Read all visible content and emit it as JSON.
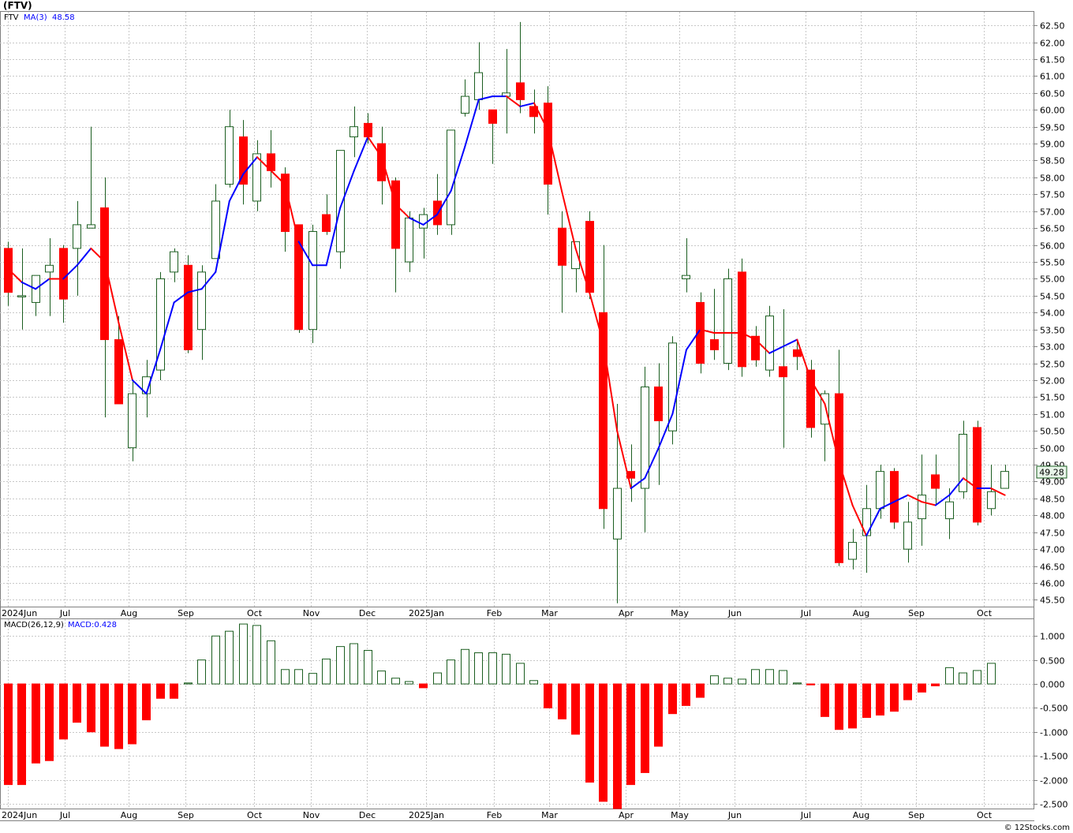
{
  "title": "(FTV)",
  "footer": "© 12Stocks.com",
  "colors": {
    "up": "#1b5e20",
    "down": "#ff0000",
    "ma_up": "#0000ff",
    "ma_down": "#ff0000",
    "grid": "#c8c8c8",
    "price_tag_bg": "#e8f5e9"
  },
  "price_panel": {
    "legend_symbol": "FTV",
    "legend_ma": "MA(3)",
    "legend_ma_value": "48.58",
    "last_price": "49.28"
  },
  "macd_panel": {
    "legend_macd": "MACD(26,12,9)",
    "legend_macd_value": "MACD:0.428"
  },
  "x_axis_labels": [
    {
      "label": "2024Jun",
      "i": 0
    },
    {
      "label": "Jul",
      "i": 4.1
    },
    {
      "label": "Aug",
      "i": 8.7
    },
    {
      "label": "Sep",
      "i": 12.8
    },
    {
      "label": "Oct",
      "i": 17.8
    },
    {
      "label": "Nov",
      "i": 21.9
    },
    {
      "label": "Dec",
      "i": 25.9
    },
    {
      "label": "2025Jan",
      "i": 30.2
    },
    {
      "label": "Feb",
      "i": 35.1
    },
    {
      "label": "Mar",
      "i": 39.1
    },
    {
      "label": "Apr",
      "i": 44.6
    },
    {
      "label": "May",
      "i": 48.5
    },
    {
      "label": "Jun",
      "i": 52.5
    },
    {
      "label": "Jul",
      "i": 57.6
    },
    {
      "label": "Aug",
      "i": 61.6
    },
    {
      "label": "Sep",
      "i": 65.6
    },
    {
      "label": "Oct",
      "i": 70.5
    }
  ],
  "chart_data": [
    {
      "type": "candlestick",
      "title": "",
      "ylim": [
        45.3,
        62.9
      ],
      "y_ticks": [
        "45.50",
        "46.00",
        "46.50",
        "47.00",
        "47.50",
        "48.00",
        "48.50",
        "49.00",
        "49.50",
        "50.00",
        "50.50",
        "51.00",
        "51.50",
        "52.00",
        "52.50",
        "53.00",
        "53.50",
        "54.00",
        "54.50",
        "55.00",
        "55.50",
        "56.00",
        "56.50",
        "57.00",
        "57.50",
        "58.00",
        "58.50",
        "59.00",
        "59.50",
        "60.00",
        "60.50",
        "61.00",
        "61.50",
        "62.00",
        "62.50"
      ],
      "candles": [
        {
          "o": 55.9,
          "h": 56.1,
          "l": 54.2,
          "c": 54.6
        },
        {
          "o": 54.5,
          "h": 55.9,
          "l": 53.5,
          "c": 54.5
        },
        {
          "o": 54.3,
          "h": 55.1,
          "l": 53.9,
          "c": 55.1
        },
        {
          "o": 55.2,
          "h": 56.2,
          "l": 53.9,
          "c": 55.4
        },
        {
          "o": 55.9,
          "h": 56.0,
          "l": 53.7,
          "c": 54.4
        },
        {
          "o": 55.9,
          "h": 57.3,
          "l": 54.5,
          "c": 56.6
        },
        {
          "o": 56.5,
          "h": 59.5,
          "l": 56.5,
          "c": 56.6
        },
        {
          "o": 57.1,
          "h": 58.0,
          "l": 50.9,
          "c": 53.2
        },
        {
          "o": 53.2,
          "h": 53.9,
          "l": 51.3,
          "c": 51.3
        },
        {
          "o": 50.0,
          "h": 52.0,
          "l": 49.6,
          "c": 51.6
        },
        {
          "o": 51.6,
          "h": 52.6,
          "l": 50.9,
          "c": 52.1
        },
        {
          "o": 52.3,
          "h": 55.2,
          "l": 52.0,
          "c": 55.0
        },
        {
          "o": 55.2,
          "h": 55.9,
          "l": 54.9,
          "c": 55.8
        },
        {
          "o": 55.4,
          "h": 55.7,
          "l": 52.8,
          "c": 52.9
        },
        {
          "o": 53.5,
          "h": 55.4,
          "l": 52.6,
          "c": 55.2
        },
        {
          "o": 55.6,
          "h": 57.8,
          "l": 55.6,
          "c": 57.3
        },
        {
          "o": 57.8,
          "h": 60.0,
          "l": 57.7,
          "c": 59.5
        },
        {
          "o": 59.2,
          "h": 59.7,
          "l": 57.2,
          "c": 57.8
        },
        {
          "o": 57.3,
          "h": 59.1,
          "l": 57.0,
          "c": 58.7
        },
        {
          "o": 58.7,
          "h": 59.4,
          "l": 57.7,
          "c": 58.2
        },
        {
          "o": 58.1,
          "h": 58.3,
          "l": 55.8,
          "c": 56.4
        },
        {
          "o": 56.6,
          "h": 56.6,
          "l": 53.4,
          "c": 53.5
        },
        {
          "o": 53.5,
          "h": 56.6,
          "l": 53.1,
          "c": 56.4
        },
        {
          "o": 56.9,
          "h": 57.5,
          "l": 56.3,
          "c": 56.4
        },
        {
          "o": 55.8,
          "h": 58.8,
          "l": 55.3,
          "c": 58.8
        },
        {
          "o": 59.2,
          "h": 60.1,
          "l": 58.6,
          "c": 59.5
        },
        {
          "o": 59.6,
          "h": 59.9,
          "l": 59.0,
          "c": 59.2
        },
        {
          "o": 59.0,
          "h": 59.5,
          "l": 57.2,
          "c": 57.9
        },
        {
          "o": 57.9,
          "h": 58.0,
          "l": 54.6,
          "c": 55.9
        },
        {
          "o": 55.5,
          "h": 57.0,
          "l": 55.2,
          "c": 56.8
        },
        {
          "o": 56.5,
          "h": 57.1,
          "l": 55.6,
          "c": 56.9
        },
        {
          "o": 57.3,
          "h": 58.1,
          "l": 56.3,
          "c": 56.6
        },
        {
          "o": 56.6,
          "h": 59.4,
          "l": 56.3,
          "c": 59.4
        },
        {
          "o": 59.9,
          "h": 60.9,
          "l": 59.8,
          "c": 60.4
        },
        {
          "o": 60.3,
          "h": 62.0,
          "l": 60.0,
          "c": 61.1
        },
        {
          "o": 60.0,
          "h": 60.0,
          "l": 58.4,
          "c": 59.6
        },
        {
          "o": 60.4,
          "h": 61.8,
          "l": 59.3,
          "c": 60.5
        },
        {
          "o": 60.8,
          "h": 62.6,
          "l": 59.9,
          "c": 60.3
        },
        {
          "o": 60.1,
          "h": 60.6,
          "l": 59.3,
          "c": 59.8
        },
        {
          "o": 60.2,
          "h": 60.7,
          "l": 56.9,
          "c": 57.8
        },
        {
          "o": 56.5,
          "h": 57.0,
          "l": 54.0,
          "c": 55.4
        },
        {
          "o": 55.3,
          "h": 56.1,
          "l": 54.6,
          "c": 56.1
        },
        {
          "o": 56.7,
          "h": 57.0,
          "l": 54.4,
          "c": 54.6
        },
        {
          "o": 54.0,
          "h": 56.0,
          "l": 47.6,
          "c": 48.2
        },
        {
          "o": 47.3,
          "h": 51.3,
          "l": 45.4,
          "c": 48.8
        },
        {
          "o": 49.3,
          "h": 50.1,
          "l": 48.4,
          "c": 49.1
        },
        {
          "o": 48.8,
          "h": 52.4,
          "l": 47.5,
          "c": 51.8
        },
        {
          "o": 51.8,
          "h": 52.5,
          "l": 48.9,
          "c": 50.8
        },
        {
          "o": 50.5,
          "h": 53.3,
          "l": 50.1,
          "c": 53.1
        },
        {
          "o": 55.0,
          "h": 56.2,
          "l": 54.6,
          "c": 55.1
        },
        {
          "o": 54.3,
          "h": 54.6,
          "l": 52.2,
          "c": 52.5
        },
        {
          "o": 53.2,
          "h": 54.7,
          "l": 52.6,
          "c": 52.9
        },
        {
          "o": 52.5,
          "h": 55.3,
          "l": 52.3,
          "c": 55.0
        },
        {
          "o": 55.2,
          "h": 55.6,
          "l": 52.1,
          "c": 52.4
        },
        {
          "o": 53.3,
          "h": 53.6,
          "l": 52.4,
          "c": 52.6
        },
        {
          "o": 52.3,
          "h": 54.2,
          "l": 52.1,
          "c": 53.9
        },
        {
          "o": 52.4,
          "h": 54.1,
          "l": 50.0,
          "c": 52.1
        },
        {
          "o": 52.9,
          "h": 53.2,
          "l": 52.3,
          "c": 52.7
        },
        {
          "o": 52.3,
          "h": 52.6,
          "l": 50.3,
          "c": 50.6
        },
        {
          "o": 50.7,
          "h": 51.7,
          "l": 49.6,
          "c": 51.6
        },
        {
          "o": 51.6,
          "h": 52.9,
          "l": 46.5,
          "c": 46.6
        },
        {
          "o": 46.7,
          "h": 47.6,
          "l": 46.4,
          "c": 47.2
        },
        {
          "o": 47.4,
          "h": 48.9,
          "l": 46.3,
          "c": 48.2
        },
        {
          "o": 48.2,
          "h": 49.5,
          "l": 47.9,
          "c": 49.3
        },
        {
          "o": 49.3,
          "h": 49.4,
          "l": 47.6,
          "c": 47.8
        },
        {
          "o": 47.0,
          "h": 48.4,
          "l": 46.6,
          "c": 47.8
        },
        {
          "o": 47.9,
          "h": 49.8,
          "l": 47.1,
          "c": 48.6
        },
        {
          "o": 49.2,
          "h": 49.8,
          "l": 48.3,
          "c": 48.8
        },
        {
          "o": 47.9,
          "h": 48.8,
          "l": 47.3,
          "c": 48.4
        },
        {
          "o": 48.7,
          "h": 50.8,
          "l": 48.5,
          "c": 50.4
        },
        {
          "o": 50.6,
          "h": 50.8,
          "l": 47.7,
          "c": 47.8
        },
        {
          "o": 48.2,
          "h": 49.5,
          "l": 48.0,
          "c": 48.7
        },
        {
          "o": 48.8,
          "h": 49.5,
          "l": 48.8,
          "c": 49.3
        }
      ],
      "ma": [
        55.3,
        54.9,
        54.7,
        55.0,
        55.0,
        55.4,
        55.9,
        55.5,
        53.7,
        52.0,
        51.6,
        52.9,
        54.3,
        54.6,
        54.7,
        55.2,
        57.3,
        58.1,
        58.6,
        58.2,
        57.8,
        56.1,
        55.4,
        55.4,
        57.1,
        58.2,
        59.2,
        58.6,
        57.2,
        56.8,
        56.6,
        56.9,
        57.6,
        58.9,
        60.3,
        60.4,
        60.4,
        60.1,
        60.2,
        59.4,
        57.6,
        55.9,
        54.6,
        53.1,
        50.5,
        48.8,
        49.1,
        50.0,
        51.0,
        52.9,
        53.5,
        53.4,
        53.4,
        53.4,
        53.2,
        52.8,
        53.0,
        53.2,
        52.0,
        51.3,
        49.6,
        48.3,
        47.4,
        48.2,
        48.4,
        48.6,
        48.4,
        48.3,
        48.6,
        49.1,
        48.8,
        48.8,
        48.6
      ],
      "ma_rising": [
        false,
        false,
        true,
        true,
        false,
        true,
        true,
        false,
        false,
        false,
        true,
        true,
        true,
        true,
        true,
        true,
        true,
        true,
        true,
        false,
        false,
        false,
        true,
        true,
        true,
        true,
        true,
        false,
        false,
        false,
        true,
        true,
        true,
        true,
        true,
        true,
        true,
        false,
        true,
        false,
        false,
        false,
        false,
        false,
        false,
        false,
        true,
        true,
        true,
        true,
        true,
        false,
        false,
        false,
        false,
        false,
        true,
        true,
        false,
        false,
        false,
        false,
        false,
        true,
        true,
        true,
        false,
        false,
        true,
        true,
        false,
        true,
        false
      ]
    },
    {
      "type": "bar",
      "title": "",
      "ylim": [
        -2.6,
        1.35
      ],
      "y_ticks": [
        "-2.500",
        "-2.000",
        "-1.500",
        "-1.000",
        "-0.500",
        "0.000",
        "0.500",
        "1.000"
      ],
      "values": [
        -2.1,
        -2.1,
        -1.65,
        -1.6,
        -1.15,
        -0.8,
        -1.0,
        -1.3,
        -1.35,
        -1.25,
        -0.75,
        -0.3,
        -0.3,
        0.02,
        0.5,
        1.0,
        1.1,
        1.25,
        1.22,
        0.9,
        0.3,
        0.3,
        0.22,
        0.52,
        0.78,
        0.84,
        0.7,
        0.27,
        0.12,
        0.05,
        -0.08,
        0.23,
        0.5,
        0.72,
        0.65,
        0.65,
        0.62,
        0.43,
        0.07,
        -0.5,
        -0.73,
        -1.05,
        -2.05,
        -2.45,
        -2.6,
        -2.1,
        -1.85,
        -1.3,
        -0.62,
        -0.45,
        -0.28,
        0.17,
        0.12,
        0.1,
        0.3,
        0.3,
        0.28,
        0.02,
        -0.02,
        -0.68,
        -0.95,
        -0.92,
        -0.7,
        -0.65,
        -0.57,
        -0.33,
        -0.17,
        -0.04,
        0.34,
        0.23,
        0.28,
        0.43
      ],
      "colors_by_sign": {
        "positive": "#1b5e20",
        "negative": "#ff0000"
      }
    }
  ]
}
